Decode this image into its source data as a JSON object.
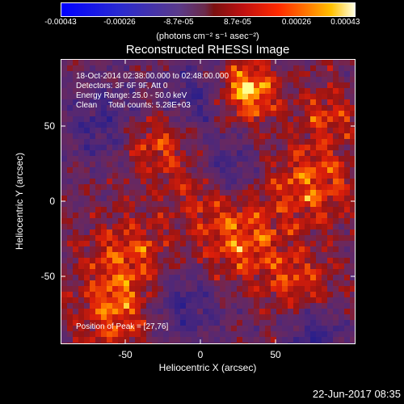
{
  "colorbar": {
    "ticks": [
      "-0.00043",
      "-0.00026",
      "-8.7e-05",
      "8.7e-05",
      "0.00026",
      "0.00043"
    ],
    "units": "(photons cm⁻² s⁻¹ asec⁻²)"
  },
  "title": "Reconstructed RHESSI Image",
  "info": {
    "time": "18-Oct-2014 02:38:00.000 to 02:48:00.000",
    "detectors": "Detectors: 3F 6F 9F, Att 0",
    "energy": "Energy Range: 25.0 - 50.0 keV",
    "clean": "Clean     Total counts: 5.28E+03"
  },
  "peak": "Position of Peak = [27,76]",
  "axes": {
    "xlabel": "Heliocentric X (arcsec)",
    "ylabel": "Heliocentric Y (arcsec)",
    "xticks": [
      "-50",
      "0",
      "50"
    ],
    "yticks": [
      "50",
      "0",
      "-50"
    ]
  },
  "date": "22-Jun-2017 08:35"
}
